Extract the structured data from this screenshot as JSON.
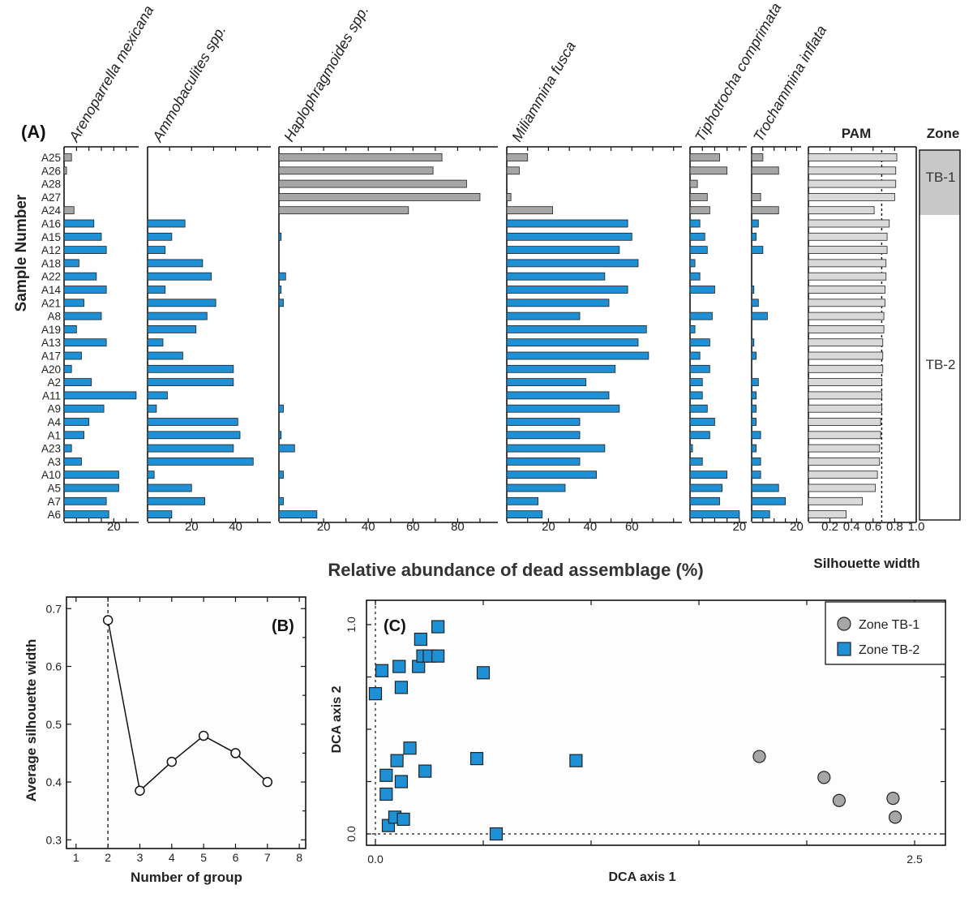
{
  "chart_data": [
    {
      "type": "bar",
      "panel_label": "(A)",
      "ylabel": "Sample Number",
      "xlabel": "Relative abundance of dead assemblage (%)",
      "zone_header": "Zone",
      "zones": [
        "TB-1",
        "TB-2"
      ],
      "zone_tb1_samples": [
        "A25",
        "A26",
        "A28",
        "A27",
        "A24"
      ],
      "samples": [
        "A25",
        "A26",
        "A28",
        "A27",
        "A24",
        "A16",
        "A15",
        "A12",
        "A18",
        "A22",
        "A14",
        "A21",
        "A8",
        "A19",
        "A13",
        "A17",
        "A20",
        "A2",
        "A11",
        "A9",
        "A4",
        "A1",
        "A23",
        "A3",
        "A10",
        "A5",
        "A7",
        "A6"
      ],
      "series": [
        {
          "name": "Arenoparrella mexicana",
          "xmax": 30,
          "ticks": [
            20
          ],
          "tick_labels": [
            "20"
          ],
          "values": [
            3,
            1,
            0,
            0,
            4,
            12,
            15,
            17,
            6,
            13,
            17,
            8,
            15,
            5,
            17,
            7,
            3,
            11,
            29,
            16,
            10,
            8,
            3,
            7,
            22,
            22,
            17,
            18
          ]
        },
        {
          "name": "Ammobaculites spp.",
          "xmax": 56,
          "ticks": [
            20,
            40
          ],
          "tick_labels": [
            "20",
            "40"
          ],
          "values": [
            0,
            0,
            0,
            0,
            0,
            17,
            11,
            8,
            25,
            29,
            8,
            31,
            27,
            22,
            7,
            16,
            39,
            39,
            9,
            4,
            41,
            42,
            39,
            48,
            3,
            20,
            26,
            11
          ]
        },
        {
          "name": "Haplophragmoides spp.",
          "xmax": 98,
          "ticks": [
            20,
            40,
            60,
            80
          ],
          "tick_labels": [
            "20",
            "40",
            "60",
            "80"
          ],
          "values": [
            73,
            69,
            84,
            90,
            58,
            0,
            1,
            0,
            0,
            3,
            1,
            2,
            0,
            0,
            0,
            0,
            0,
            0,
            0,
            2,
            0,
            1,
            7,
            0,
            2,
            0,
            2,
            17
          ]
        },
        {
          "name": "Miliammina fusca",
          "xmax": 84,
          "ticks": [
            20,
            40,
            60
          ],
          "tick_labels": [
            "20",
            "40",
            "60"
          ],
          "values": [
            10,
            6,
            0,
            2,
            22,
            58,
            60,
            54,
            63,
            47,
            58,
            49,
            35,
            67,
            63,
            68,
            52,
            38,
            49,
            54,
            35,
            35,
            47,
            35,
            43,
            28,
            15,
            17
          ]
        },
        {
          "name": "Tiphotrocha comprimata",
          "xmax": 23,
          "ticks": [
            20
          ],
          "tick_labels": [
            "20"
          ],
          "values": [
            12,
            15,
            3,
            7,
            8,
            4,
            6,
            7,
            2,
            4,
            10,
            0,
            9,
            2,
            8,
            4,
            8,
            5,
            5,
            7,
            10,
            8,
            1,
            5,
            15,
            13,
            12,
            20
          ]
        },
        {
          "name": "Trochammina inflata",
          "xmax": 22,
          "ticks": [
            20
          ],
          "tick_labels": [
            "20"
          ],
          "values": [
            5,
            12,
            0,
            4,
            12,
            3,
            2,
            5,
            0,
            0,
            1,
            3,
            7,
            0,
            1,
            2,
            0,
            3,
            2,
            2,
            2,
            4,
            2,
            4,
            4,
            12,
            15,
            8
          ]
        },
        {
          "name": "PAM",
          "xmax": 1.0,
          "ticks": [
            0.2,
            0.4,
            0.6,
            0.8,
            1.0
          ],
          "tick_labels": [
            "0.2",
            "0.4",
            "0.6",
            "0.8",
            "1.0"
          ],
          "axis_label": "Silhouette width",
          "dashed_at": 0.68,
          "values": [
            0.82,
            0.81,
            0.81,
            0.8,
            0.61,
            0.75,
            0.73,
            0.73,
            0.72,
            0.72,
            0.71,
            0.71,
            0.7,
            0.7,
            0.69,
            0.69,
            0.69,
            0.68,
            0.68,
            0.68,
            0.67,
            0.67,
            0.66,
            0.66,
            0.64,
            0.62,
            0.5,
            0.35
          ]
        }
      ]
    },
    {
      "type": "line",
      "panel_label": "(B)",
      "xlabel": "Number of group",
      "ylabel": "Average silhouette width",
      "x": [
        2,
        3,
        4,
        5,
        6,
        7
      ],
      "y": [
        0.68,
        0.385,
        0.435,
        0.48,
        0.45,
        0.4
      ],
      "xlim": [
        0.7,
        8.2
      ],
      "ylim": [
        0.285,
        0.72
      ],
      "xticks": [
        1,
        2,
        3,
        4,
        5,
        6,
        7,
        8
      ],
      "yticks": [
        0.3,
        0.4,
        0.5,
        0.6,
        0.7
      ],
      "dashed_x": 2
    },
    {
      "type": "scatter",
      "panel_label": "(C)",
      "xlabel": "DCA axis 1",
      "ylabel": "DCA axis 2",
      "xlim": [
        -0.05,
        2.58
      ],
      "ylim": [
        -0.03,
        1.1
      ],
      "xtick_labels": [
        {
          "value": 0.0,
          "label": "0.0"
        },
        {
          "value": 2.5,
          "label": "2.5"
        }
      ],
      "xtick_minor": [
        0.5,
        1.0,
        1.5,
        2.0
      ],
      "ytick_labels": [
        {
          "value": 0.0,
          "label": "0.0"
        },
        {
          "value": 1.0,
          "label": "1.0"
        }
      ],
      "ytick_minor": [
        0.25,
        0.5,
        0.75
      ],
      "legend": [
        "Zone TB-1",
        "Zone TB-2"
      ],
      "series": [
        {
          "name": "Zone TB-1",
          "marker": "circle",
          "color": "#a6a6a6",
          "points": [
            [
              1.78,
              0.37
            ],
            [
              2.08,
              0.27
            ],
            [
              2.15,
              0.16
            ],
            [
              2.4,
              0.17
            ],
            [
              2.41,
              0.08
            ]
          ]
        },
        {
          "name": "Zone TB-2",
          "marker": "square",
          "color": "#1e90d6",
          "points": [
            [
              0.0,
              0.67
            ],
            [
              0.03,
              0.78
            ],
            [
              0.05,
              0.28
            ],
            [
              0.05,
              0.19
            ],
            [
              0.06,
              0.04
            ],
            [
              0.09,
              0.08
            ],
            [
              0.1,
              0.35
            ],
            [
              0.11,
              0.8
            ],
            [
              0.12,
              0.7
            ],
            [
              0.12,
              0.25
            ],
            [
              0.13,
              0.07
            ],
            [
              0.16,
              0.41
            ],
            [
              0.2,
              0.8
            ],
            [
              0.21,
              0.93
            ],
            [
              0.22,
              0.85
            ],
            [
              0.23,
              0.3
            ],
            [
              0.25,
              0.85
            ],
            [
              0.29,
              0.99
            ],
            [
              0.29,
              0.85
            ],
            [
              0.5,
              0.77
            ],
            [
              0.47,
              0.36
            ],
            [
              0.93,
              0.35
            ],
            [
              0.56,
              0.0
            ]
          ]
        }
      ]
    }
  ],
  "colors": {
    "tb1_bar": "#a6a6a6",
    "tb2_bar": "#1e90d6",
    "pam_bar": "#d9d9d9",
    "zone_shade": "#c8c8c8",
    "panel_bg": "#fdfdfd"
  }
}
